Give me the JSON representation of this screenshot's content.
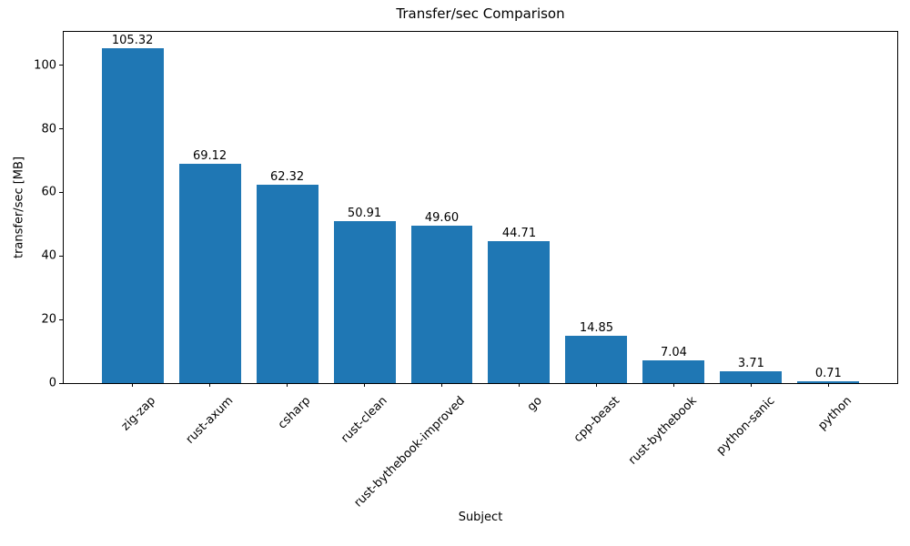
{
  "chart_data": {
    "type": "bar",
    "title": "Transfer/sec Comparison",
    "xlabel": "Subject",
    "ylabel": "transfer/sec [MB]",
    "categories": [
      "zig-zap",
      "rust-axum",
      "csharp",
      "rust-clean",
      "rust-bythebook-improved",
      "go",
      "cpp-beast",
      "rust-bythebook",
      "python-sanic",
      "python"
    ],
    "values": [
      105.32,
      69.12,
      62.32,
      50.91,
      49.6,
      44.71,
      14.85,
      7.04,
      3.71,
      0.71
    ],
    "value_labels": [
      "105.32",
      "69.12",
      "62.32",
      "50.91",
      "49.60",
      "44.71",
      "14.85",
      "7.04",
      "3.71",
      "0.71"
    ],
    "yticks": [
      0,
      20,
      40,
      60,
      80,
      100
    ],
    "ylim": [
      0,
      110.5
    ],
    "grid": false,
    "legend": "none",
    "bar_color": "#1f77b4",
    "spine_color": "#000000",
    "text_color": "#000000",
    "background": "#ffffff",
    "xtick_rotation_deg": 45
  }
}
